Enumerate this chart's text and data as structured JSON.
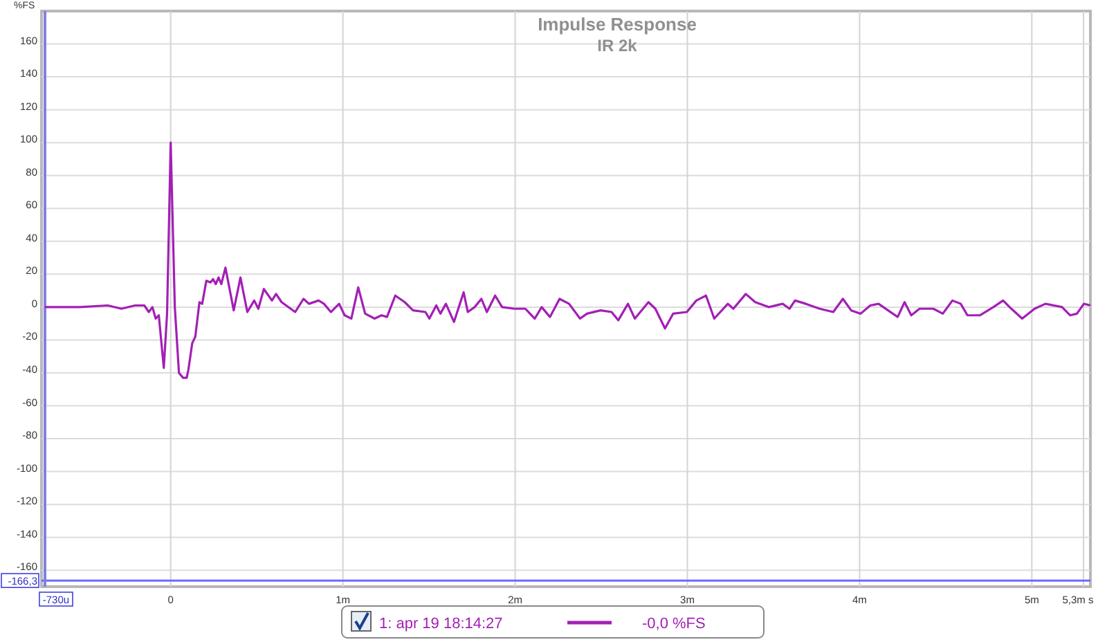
{
  "chart_data": {
    "type": "line",
    "title": "Impulse Response",
    "subtitle": "IR 2k",
    "ylabel": "%FS",
    "x": [
      -0.73,
      -0.525,
      -0.366,
      -0.286,
      -0.207,
      -0.153,
      -0.127,
      -0.106,
      -0.087,
      -0.069,
      -0.04,
      -0.021,
      0,
      0.024,
      0.048,
      0.072,
      0.093,
      0.103,
      0.125,
      0.143,
      0.167,
      0.183,
      0.207,
      0.231,
      0.246,
      0.262,
      0.278,
      0.294,
      0.318,
      0.366,
      0.405,
      0.445,
      0.485,
      0.509,
      0.541,
      0.588,
      0.612,
      0.644,
      0.723,
      0.771,
      0.803,
      0.859,
      0.89,
      0.93,
      0.978,
      1.01,
      1.049,
      1.089,
      1.129,
      1.184,
      1.224,
      1.256,
      1.304,
      1.359,
      1.407,
      1.479,
      1.502,
      1.542,
      1.566,
      1.598,
      1.645,
      1.701,
      1.725,
      1.765,
      1.804,
      1.836,
      1.884,
      1.924,
      1.995,
      2.059,
      2.114,
      2.154,
      2.202,
      2.258,
      2.313,
      2.377,
      2.417,
      2.496,
      2.56,
      2.599,
      2.655,
      2.695,
      2.774,
      2.814,
      2.87,
      2.917,
      2.997,
      3.052,
      3.108,
      3.156,
      3.235,
      3.267,
      3.339,
      3.394,
      3.474,
      3.553,
      3.593,
      3.625,
      3.688,
      3.768,
      3.847,
      3.903,
      3.951,
      4.006,
      4.062,
      4.11,
      4.165,
      4.221,
      4.261,
      4.3,
      4.348,
      4.428,
      4.483,
      4.539,
      4.587,
      4.626,
      4.698,
      4.777,
      4.833,
      4.881,
      4.944,
      5.016,
      5.079,
      5.175,
      5.223,
      5.262,
      5.302,
      5.34
    ],
    "series": [
      {
        "name": "1: apr 19 18:14:27",
        "color": "#a31fb5",
        "values": [
          0,
          0,
          1,
          -1,
          1,
          1,
          -3,
          0,
          -7,
          -5,
          -37,
          -4,
          100,
          0,
          -40,
          -43,
          -43,
          -38,
          -22,
          -18,
          3,
          2,
          16,
          15,
          17,
          14,
          18,
          14,
          24,
          -2,
          18,
          -3,
          4,
          -1,
          11,
          4,
          8,
          3,
          -3,
          5,
          2,
          4,
          2,
          -3,
          2,
          -5,
          -7,
          12,
          -4,
          -7,
          -5,
          -6,
          7,
          3,
          -2,
          -3,
          -7,
          1,
          -4,
          2,
          -9,
          9,
          -3,
          0,
          5,
          -3,
          7,
          0,
          -1,
          -1,
          -7,
          0,
          -6,
          5,
          2,
          -7,
          -4,
          -2,
          -3,
          -8,
          2,
          -7,
          3,
          -1,
          -13,
          -4,
          -3,
          4,
          7,
          -7,
          2,
          -1,
          8,
          3,
          0,
          2,
          -1,
          4,
          2,
          -1,
          -3,
          5,
          -2,
          -4,
          1,
          2,
          -2,
          -6,
          3,
          -5,
          -1,
          -1,
          -4,
          4,
          2,
          -5,
          -5,
          0,
          4,
          -1,
          -7,
          -1,
          2,
          0,
          -5,
          -4,
          2,
          1
        ]
      }
    ],
    "xlim": [
      -0.75,
      5.34
    ],
    "xticks": [
      0,
      {
        "value": 1,
        "label": "1m"
      },
      {
        "value": 2,
        "label": "2m"
      },
      {
        "value": 3,
        "label": "3m"
      },
      {
        "value": 4,
        "label": "4m"
      },
      {
        "value": 5,
        "label": "5m"
      },
      {
        "value": 5.3,
        "label": "5,3m s"
      }
    ],
    "ylim": [
      -170,
      180
    ],
    "yticks": [
      {
        "value": -166.3,
        "label": "-166,3"
      },
      -160,
      -140,
      -120,
      -100,
      -80,
      -60,
      -40,
      -20,
      0,
      20,
      40,
      60,
      80,
      100,
      120,
      140,
      160
    ],
    "ref_lines": [
      {
        "axis": "y",
        "value": -166.3,
        "color": "#6b6bff"
      },
      {
        "axis": "x",
        "value": -0.73,
        "color": "#8080e0"
      }
    ],
    "annotations": [
      "-0,0 %FS",
      "-730u"
    ],
    "grid": true,
    "legend": "bottom",
    "line_style": "solid",
    "marker": "none"
  }
}
